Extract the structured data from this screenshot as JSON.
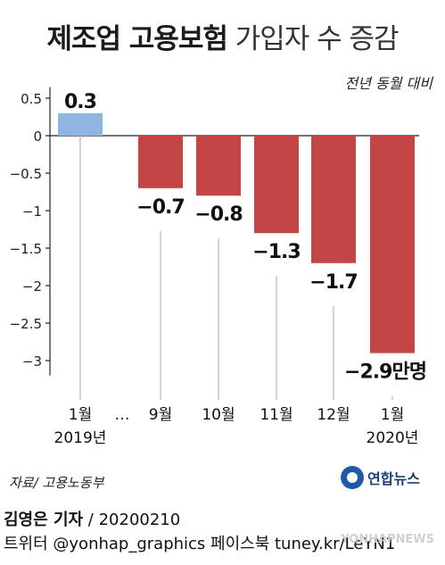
{
  "title": {
    "bold": "제조업 고용보험",
    "light": "가입자 수 증감"
  },
  "unit_note": "전년 동월 대비",
  "source": "자료/ 고용노동부",
  "logo": {
    "text": "연합뉴스"
  },
  "credit": {
    "reporter": "김영은 기자",
    "date": " / 20200210",
    "social": "트위터 @yonhap_graphics  페이스북 tuney.kr/LeYN1"
  },
  "watermark": "YONHAPNEWS",
  "colors": {
    "positive": "#8fb6df",
    "negative": "#c44545",
    "axis": "#222222",
    "leader": "#bbbbbb"
  },
  "chart_data": {
    "type": "bar",
    "categories": [
      "1월\n2019년",
      "9월",
      "10월",
      "11월",
      "12월",
      "1월\n2020년"
    ],
    "gap_label": "…",
    "values": [
      0.3,
      -0.7,
      -0.8,
      -1.3,
      -1.7,
      -2.9
    ],
    "value_labels": [
      "0.3",
      "−0.7",
      "−0.8",
      "−1.3",
      "−1.7",
      "−2.9만명"
    ],
    "y_ticks": [
      "0.5",
      "0",
      "−0.5",
      "−1",
      "−1.5",
      "−2",
      "−2.5",
      "−3"
    ],
    "y_tick_values": [
      0.5,
      0,
      -0.5,
      -1,
      -1.5,
      -2,
      -2.5,
      -3
    ],
    "ylim": [
      -3.2,
      0.65
    ],
    "unit": "만명",
    "grid": false
  }
}
